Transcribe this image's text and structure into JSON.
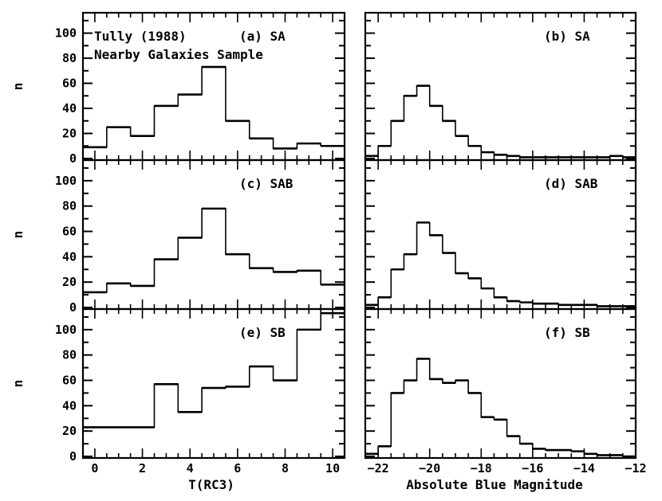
{
  "annotation": {
    "line1": "Tully (1988)",
    "line2": "Nearby Galaxies Sample"
  },
  "y_axis_label": "n",
  "x_axis_labels": {
    "left": "T(RC3)",
    "right": "Absolute Blue Magnitude"
  },
  "chart_data": [
    {
      "type": "histogram",
      "panel_label": "(a) SA",
      "xlabel": "T(RC3)",
      "ylabel": "n",
      "xlim": [
        -0.5,
        10.5
      ],
      "ylim": [
        0,
        115
      ],
      "xticks": [
        0,
        2,
        4,
        6,
        8,
        10
      ],
      "yticks": [
        0,
        20,
        40,
        60,
        80,
        100
      ],
      "bins": [
        [
          -0.5,
          0.5
        ],
        [
          0.5,
          1.5
        ],
        [
          1.5,
          2.5
        ],
        [
          2.5,
          3.5
        ],
        [
          3.5,
          4.5
        ],
        [
          4.5,
          5.5
        ],
        [
          5.5,
          6.5
        ],
        [
          6.5,
          7.5
        ],
        [
          7.5,
          8.5
        ],
        [
          8.5,
          9.5
        ],
        [
          9.5,
          10.5
        ]
      ],
      "values": [
        9,
        25,
        18,
        42,
        51,
        73,
        30,
        16,
        8,
        12,
        10
      ]
    },
    {
      "type": "histogram",
      "panel_label": "(b) SA",
      "xlabel": "Absolute Blue Magnitude",
      "ylabel": "n",
      "xlim": [
        -22.5,
        -12
      ],
      "ylim": [
        0,
        115
      ],
      "xticks": [
        -22,
        -20,
        -18,
        -16,
        -14,
        -12
      ],
      "yticks": [
        0,
        20,
        40,
        60,
        80,
        100
      ],
      "bins": [
        [
          -22.5,
          -22
        ],
        [
          -22,
          -21.5
        ],
        [
          -21.5,
          -21
        ],
        [
          -21,
          -20.5
        ],
        [
          -20.5,
          -20
        ],
        [
          -20,
          -19.5
        ],
        [
          -19.5,
          -19
        ],
        [
          -19,
          -18.5
        ],
        [
          -18.5,
          -18
        ],
        [
          -18,
          -17.5
        ],
        [
          -17.5,
          -17
        ],
        [
          -17,
          -16.5
        ],
        [
          -16.5,
          -16
        ],
        [
          -16,
          -15.5
        ],
        [
          -15.5,
          -15
        ],
        [
          -15,
          -14.5
        ],
        [
          -14.5,
          -14
        ],
        [
          -14,
          -13.5
        ],
        [
          -13.5,
          -13
        ],
        [
          -13,
          -12.5
        ],
        [
          -12.5,
          -12
        ]
      ],
      "values": [
        2,
        10,
        30,
        50,
        58,
        42,
        30,
        18,
        10,
        5,
        3,
        2,
        1,
        1,
        1,
        1,
        1,
        1,
        1,
        2,
        1
      ]
    },
    {
      "type": "histogram",
      "panel_label": "(c) SAB",
      "xlabel": "T(RC3)",
      "ylabel": "n",
      "xlim": [
        -0.5,
        10.5
      ],
      "ylim": [
        0,
        115
      ],
      "xticks": [
        0,
        2,
        4,
        6,
        8,
        10
      ],
      "yticks": [
        0,
        20,
        40,
        60,
        80,
        100
      ],
      "bins": [
        [
          -0.5,
          0.5
        ],
        [
          0.5,
          1.5
        ],
        [
          1.5,
          2.5
        ],
        [
          2.5,
          3.5
        ],
        [
          3.5,
          4.5
        ],
        [
          4.5,
          5.5
        ],
        [
          5.5,
          6.5
        ],
        [
          6.5,
          7.5
        ],
        [
          7.5,
          8.5
        ],
        [
          8.5,
          9.5
        ],
        [
          9.5,
          10.5
        ]
      ],
      "values": [
        12,
        19,
        17,
        38,
        55,
        78,
        42,
        31,
        28,
        29,
        18
      ]
    },
    {
      "type": "histogram",
      "panel_label": "(d) SAB",
      "xlabel": "Absolute Blue Magnitude",
      "ylabel": "n",
      "xlim": [
        -22.5,
        -12
      ],
      "ylim": [
        0,
        115
      ],
      "xticks": [
        -22,
        -20,
        -18,
        -16,
        -14,
        -12
      ],
      "yticks": [
        0,
        20,
        40,
        60,
        80,
        100
      ],
      "bins": [
        [
          -22.5,
          -22
        ],
        [
          -22,
          -21.5
        ],
        [
          -21.5,
          -21
        ],
        [
          -21,
          -20.5
        ],
        [
          -20.5,
          -20
        ],
        [
          -20,
          -19.5
        ],
        [
          -19.5,
          -19
        ],
        [
          -19,
          -18.5
        ],
        [
          -18.5,
          -18
        ],
        [
          -18,
          -17.5
        ],
        [
          -17.5,
          -17
        ],
        [
          -17,
          -16.5
        ],
        [
          -16.5,
          -16
        ],
        [
          -16,
          -15.5
        ],
        [
          -15.5,
          -15
        ],
        [
          -15,
          -14.5
        ],
        [
          -14.5,
          -14
        ],
        [
          -14,
          -13.5
        ],
        [
          -13.5,
          -13
        ],
        [
          -13,
          -12.5
        ],
        [
          -12.5,
          -12
        ]
      ],
      "values": [
        2,
        8,
        30,
        42,
        67,
        57,
        43,
        27,
        23,
        15,
        8,
        5,
        4,
        3,
        3,
        2,
        2,
        2,
        1,
        1,
        1
      ]
    },
    {
      "type": "histogram",
      "panel_label": "(e) SB",
      "xlabel": "T(RC3)",
      "ylabel": "n",
      "xlim": [
        -0.5,
        10.5
      ],
      "ylim": [
        0,
        115
      ],
      "xticks": [
        0,
        2,
        4,
        6,
        8,
        10
      ],
      "yticks": [
        0,
        20,
        40,
        60,
        80,
        100
      ],
      "bins": [
        [
          -0.5,
          2.5
        ],
        [
          2.5,
          3.5
        ],
        [
          3.5,
          4.5
        ],
        [
          4.5,
          5.5
        ],
        [
          5.5,
          6.5
        ],
        [
          6.5,
          7.5
        ],
        [
          7.5,
          8.5
        ],
        [
          8.5,
          9.5
        ],
        [
          9.5,
          10.5
        ]
      ],
      "values": [
        23,
        57,
        35,
        54,
        55,
        71,
        60,
        100,
        113
      ]
    },
    {
      "type": "histogram",
      "panel_label": "(f) SB",
      "xlabel": "Absolute Blue Magnitude",
      "ylabel": "n",
      "xlim": [
        -22.5,
        -12
      ],
      "ylim": [
        0,
        115
      ],
      "xticks": [
        -22,
        -20,
        -18,
        -16,
        -14,
        -12
      ],
      "yticks": [
        0,
        20,
        40,
        60,
        80,
        100
      ],
      "bins": [
        [
          -22.5,
          -22
        ],
        [
          -22,
          -21.5
        ],
        [
          -21.5,
          -21
        ],
        [
          -21,
          -20.5
        ],
        [
          -20.5,
          -20
        ],
        [
          -20,
          -19.5
        ],
        [
          -19.5,
          -19
        ],
        [
          -19,
          -18.5
        ],
        [
          -18.5,
          -18
        ],
        [
          -18,
          -17.5
        ],
        [
          -17.5,
          -17
        ],
        [
          -17,
          -16.5
        ],
        [
          -16.5,
          -16
        ],
        [
          -16,
          -15.5
        ],
        [
          -15.5,
          -15
        ],
        [
          -15,
          -14.5
        ],
        [
          -14.5,
          -14
        ],
        [
          -14,
          -13.5
        ],
        [
          -13.5,
          -13
        ],
        [
          -13,
          -12.5
        ],
        [
          -12.5,
          -12
        ]
      ],
      "values": [
        2,
        8,
        50,
        60,
        77,
        61,
        58,
        60,
        50,
        31,
        29,
        16,
        10,
        6,
        5,
        5,
        4,
        2,
        1,
        1,
        0
      ]
    }
  ]
}
